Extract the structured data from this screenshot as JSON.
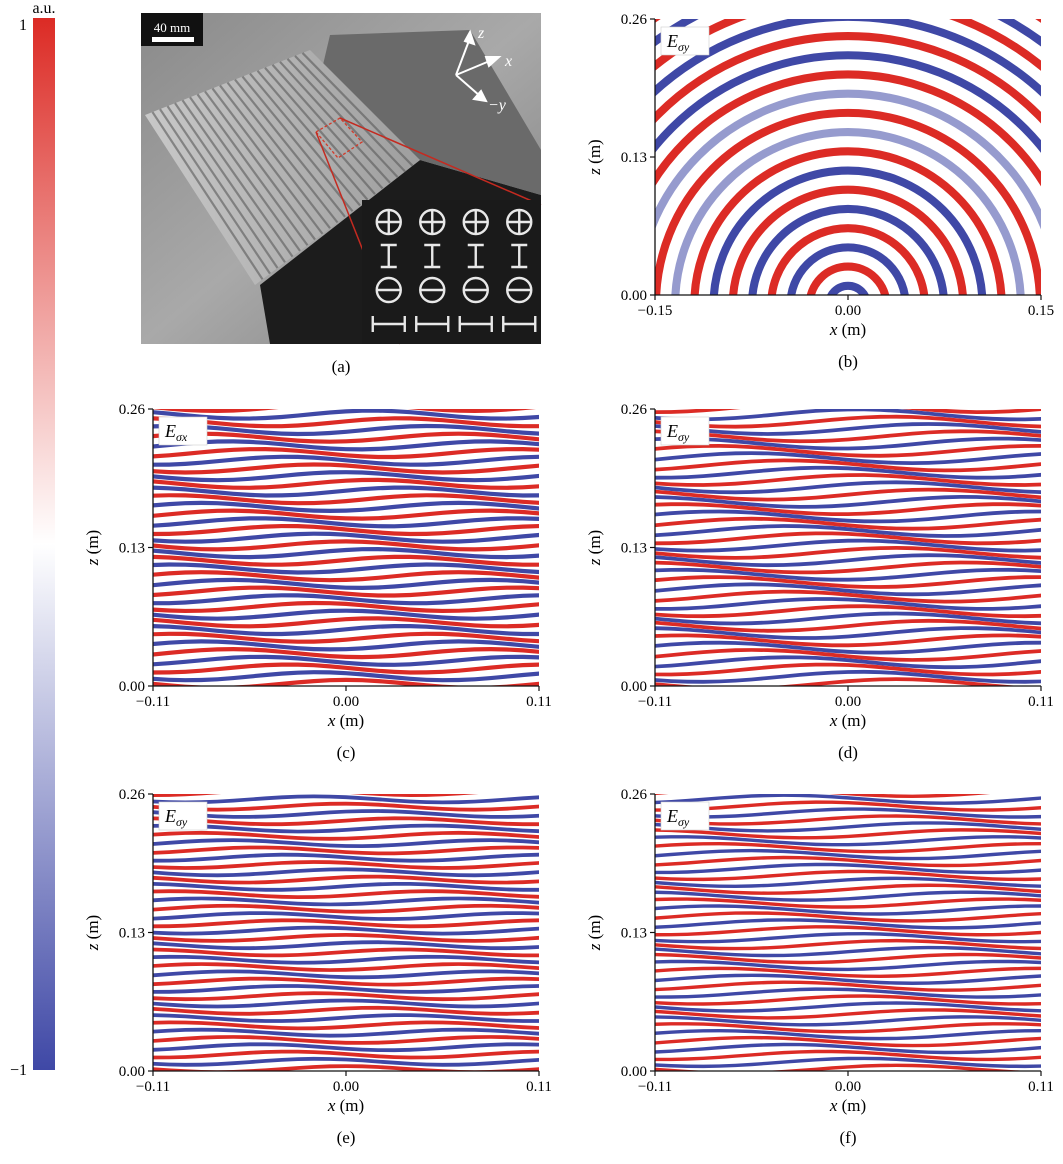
{
  "colorbar": {
    "unit": "a.u.",
    "max_label": "1",
    "min_label": "−1",
    "max_value": 1,
    "min_value": -1,
    "color_max": "#dc2b25",
    "color_mid": "#ffffff",
    "color_min": "#3f48a6"
  },
  "photo": {
    "panel_label": "(a)",
    "scale_bar": "40 mm",
    "axes": {
      "z": "z",
      "x": "x",
      "y": "−y"
    },
    "inset_grid": {
      "rows": 4,
      "cols": 4
    },
    "icon": "metasurface-sample-photo"
  },
  "chart_data": [
    {
      "panel": "(b)",
      "type": "heatmap",
      "field_label": "E",
      "field_sub": "σy",
      "pattern": "concentric-arcs",
      "xlabel_var": "x",
      "xlabel_unit": " (m)",
      "ylabel_var": "z",
      "ylabel_unit": " (m)",
      "xlim": [
        -0.15,
        0.15
      ],
      "ylim": [
        0.0,
        0.26
      ],
      "xticks": [
        "−0.15",
        "0.00",
        "0.15"
      ],
      "yticks": [
        "0.00",
        "0.13",
        "0.26"
      ],
      "fringes": 17
    },
    {
      "panel": "(c)",
      "type": "heatmap",
      "field_label": "E",
      "field_sub": "σx",
      "pattern": "horizontal-stripes",
      "xlabel_var": "x",
      "xlabel_unit": " (m)",
      "ylabel_var": "z",
      "ylabel_unit": " (m)",
      "xlim": [
        -0.11,
        0.11
      ],
      "ylim": [
        0.0,
        0.26
      ],
      "xticks": [
        "−0.11",
        "0.00",
        "0.11"
      ],
      "yticks": [
        "0.00",
        "0.13",
        "0.26"
      ],
      "fringes": 18
    },
    {
      "panel": "(d)",
      "type": "heatmap",
      "field_label": "E",
      "field_sub": "σy",
      "pattern": "horizontal-stripes",
      "xlabel_var": "x",
      "xlabel_unit": " (m)",
      "ylabel_var": "z",
      "ylabel_unit": " (m)",
      "xlim": [
        -0.11,
        0.11
      ],
      "ylim": [
        0.0,
        0.26
      ],
      "xticks": [
        "−0.11",
        "0.00",
        "0.11"
      ],
      "yticks": [
        "0.00",
        "0.13",
        "0.26"
      ],
      "fringes": 19
    },
    {
      "panel": "(e)",
      "type": "heatmap",
      "field_label": "E",
      "field_sub": "σy",
      "pattern": "horizontal-stripes",
      "xlabel_var": "x",
      "xlabel_unit": " (m)",
      "ylabel_var": "z",
      "ylabel_unit": " (m)",
      "xlim": [
        -0.11,
        0.11
      ],
      "ylim": [
        0.0,
        0.26
      ],
      "xticks": [
        "−0.11",
        "0.00",
        "0.11"
      ],
      "yticks": [
        "0.00",
        "0.13",
        "0.26"
      ],
      "fringes": 19
    },
    {
      "panel": "(f)",
      "type": "heatmap",
      "field_label": "E",
      "field_sub": "σy",
      "pattern": "horizontal-stripes",
      "xlabel_var": "x",
      "xlabel_unit": " (m)",
      "ylabel_var": "z",
      "ylabel_unit": " (m)",
      "xlim": [
        -0.11,
        0.11
      ],
      "ylim": [
        0.0,
        0.26
      ],
      "xticks": [
        "−0.11",
        "0.00",
        "0.11"
      ],
      "yticks": [
        "0.00",
        "0.13",
        "0.26"
      ],
      "fringes": 20
    }
  ]
}
